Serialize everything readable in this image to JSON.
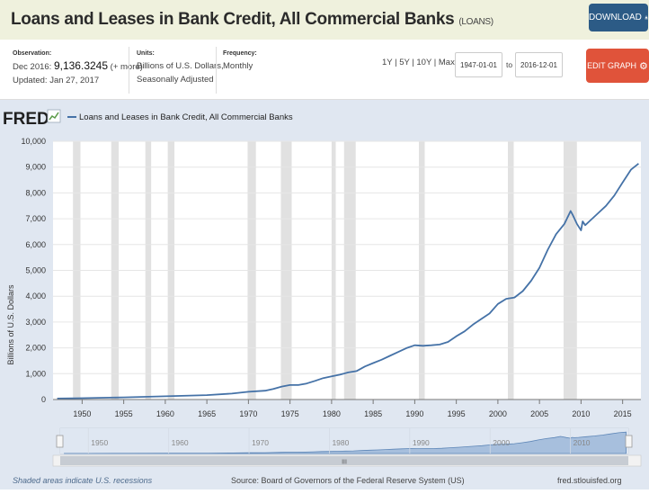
{
  "header": {
    "title": "Loans and Leases in Bank Credit, All Commercial Banks",
    "series_id": "(LOANS)",
    "download_label": "DOWNLOAD"
  },
  "info": {
    "observation_label": "Observation:",
    "observation_date": "Dec 2016:",
    "observation_value": "9,136.3245",
    "observation_more": "(+ more)",
    "updated": "Updated: Jan 27, 2017",
    "units_label": "Units:",
    "units_line1": "Billions of U.S. Dollars,",
    "units_line2": "Seasonally Adjusted",
    "frequency_label": "Frequency:",
    "frequency_value": "Monthly",
    "ranges": "1Y | 5Y | 10Y | Max",
    "start_date": "1947-01-01",
    "to_label": "to",
    "end_date": "2016-12-01",
    "edit_label": "EDIT GRAPH"
  },
  "colors": {
    "series": "#4572a7",
    "recession": "#e1e1e1",
    "header_bg": "#eff1dd",
    "download_bg": "#2c5b86",
    "edit_bg": "#e0533a"
  },
  "chart_data": {
    "type": "line",
    "logo": "FRED",
    "legend": "Loans and Leases in Bank Credit, All Commercial Banks",
    "ylabel": "Billions of U.S. Dollars",
    "xlim": [
      1946.5,
      2017.2
    ],
    "ylim": [
      0,
      10000
    ],
    "y_ticks": [
      0,
      1000,
      2000,
      3000,
      4000,
      5000,
      6000,
      7000,
      8000,
      9000,
      10000
    ],
    "y_tick_labels": [
      "0",
      "1,000",
      "2,000",
      "3,000",
      "4,000",
      "5,000",
      "6,000",
      "7,000",
      "8,000",
      "9,000",
      "10,000"
    ],
    "x_ticks": [
      1950,
      1955,
      1960,
      1965,
      1970,
      1975,
      1980,
      1985,
      1990,
      1995,
      2000,
      2005,
      2010,
      2015
    ],
    "x_tick_labels": [
      "1950",
      "1955",
      "1960",
      "1965",
      "1970",
      "1975",
      "1980",
      "1985",
      "1990",
      "1995",
      "2000",
      "2005",
      "2010",
      "2015"
    ],
    "navigator_ticks": [
      1950,
      1960,
      1970,
      1980,
      1990,
      2000,
      2010
    ],
    "navigator_tick_labels": [
      "1950",
      "1960",
      "1970",
      "1980",
      "1990",
      "2000",
      "2010"
    ],
    "grid": true,
    "recessions": [
      [
        1948.9,
        1949.8
      ],
      [
        1953.5,
        1954.4
      ],
      [
        1957.6,
        1958.3
      ],
      [
        1960.3,
        1961.1
      ],
      [
        1969.9,
        1970.9
      ],
      [
        1973.9,
        1975.2
      ],
      [
        1980.0,
        1980.5
      ],
      [
        1981.5,
        1982.9
      ],
      [
        1990.5,
        1991.2
      ],
      [
        2001.2,
        2001.9
      ],
      [
        2007.9,
        2009.5
      ]
    ],
    "series": [
      {
        "name": "Loans and Leases in Bank Credit, All Commercial Banks",
        "x": [
          1947,
          1950,
          1955,
          1960,
          1965,
          1968,
          1970,
          1972,
          1973,
          1974,
          1975,
          1976,
          1977,
          1978,
          1979,
          1980,
          1981,
          1982,
          1983,
          1984,
          1985,
          1986,
          1987,
          1988,
          1989,
          1990,
          1991,
          1992,
          1993,
          1994,
          1995,
          1996,
          1997,
          1998,
          1999,
          2000,
          2001,
          2002,
          2003,
          2004,
          2005,
          2006,
          2007,
          2008,
          2008.75,
          2009.0,
          2009.5,
          2010.0,
          2010.2,
          2010.5,
          2011.0,
          2012.0,
          2013.0,
          2014.0,
          2015.0,
          2016.0,
          2016.92
        ],
        "y": [
          38,
          52,
          85,
          125,
          170,
          230,
          300,
          340,
          410,
          500,
          560,
          560,
          620,
          720,
          830,
          900,
          960,
          1050,
          1100,
          1280,
          1410,
          1540,
          1690,
          1840,
          1990,
          2100,
          2080,
          2100,
          2130,
          2230,
          2450,
          2640,
          2900,
          3120,
          3330,
          3700,
          3900,
          3950,
          4200,
          4600,
          5100,
          5800,
          6400,
          6800,
          7300,
          7150,
          6800,
          6550,
          6900,
          6750,
          6900,
          7200,
          7500,
          7900,
          8400,
          8900,
          9136
        ]
      }
    ]
  },
  "navigator": {
    "handle_label": "III"
  },
  "footer": {
    "recession_note": "Shaded areas indicate U.S. recessions",
    "source": "Source: Board of Governors of the Federal Reserve System (US)",
    "site": "fred.stlouisfed.org"
  }
}
